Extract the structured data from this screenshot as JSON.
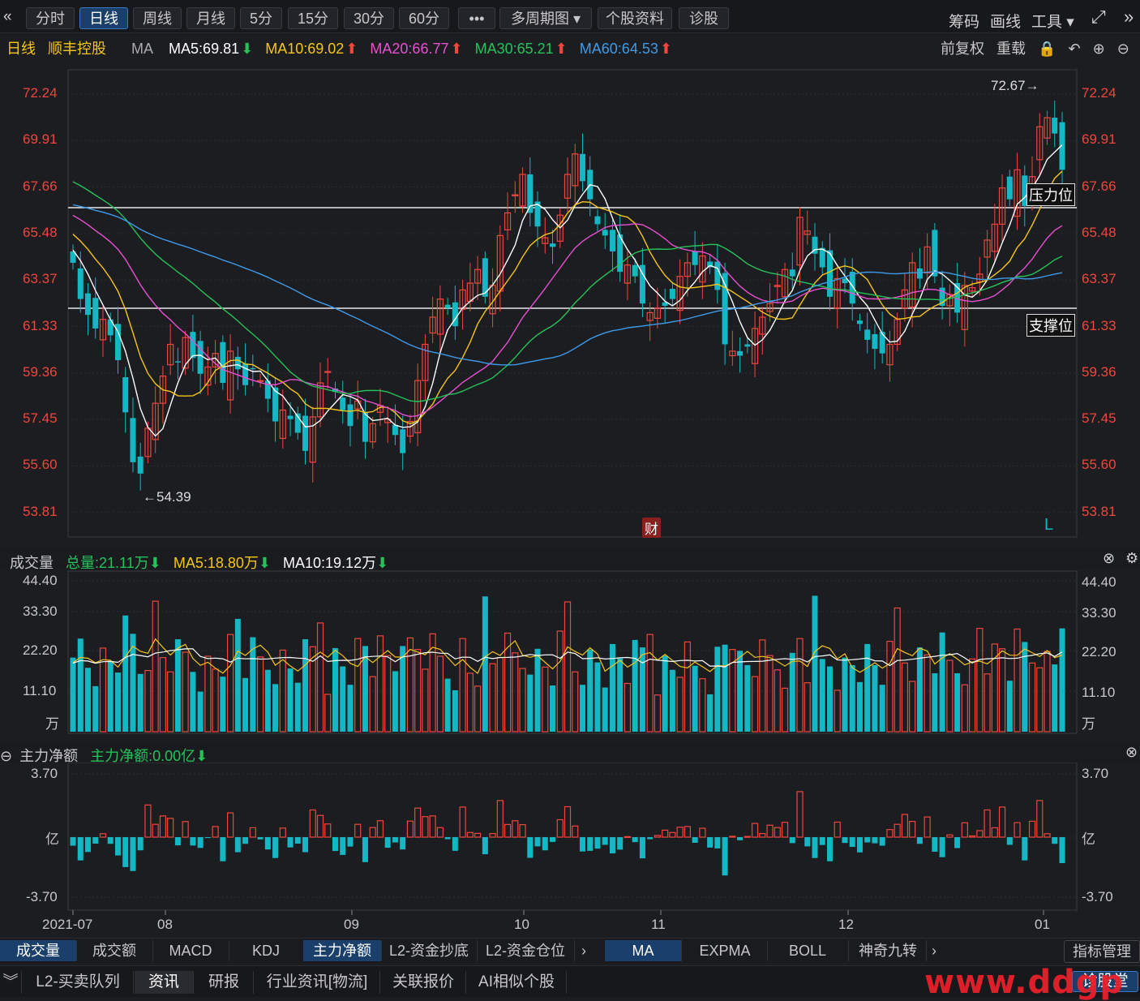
{
  "toolbar": {
    "back_icon": "«",
    "periods": [
      {
        "label": "分时",
        "active": false
      },
      {
        "label": "日线",
        "active": true
      },
      {
        "label": "周线",
        "active": false
      },
      {
        "label": "月线",
        "active": false
      },
      {
        "label": "5分",
        "active": false
      },
      {
        "label": "15分",
        "active": false
      },
      {
        "label": "30分",
        "active": false
      },
      {
        "label": "60分",
        "active": false
      }
    ],
    "more_label": "•••",
    "multi_period_label": "多周期图 ▾",
    "profile_label": "个股资料",
    "diagnose_label": "诊股",
    "right_items": [
      "筹码",
      "画线",
      "工具 ▾"
    ],
    "expand_icon": "⤢",
    "collapse_icon": "»"
  },
  "main_legend": {
    "period": "日线",
    "stock": "顺丰控股",
    "ma_label": "MA",
    "ma5": "MA5:69.81",
    "ma10": "MA10:69.02",
    "ma20": "MA20:66.77",
    "ma30": "MA30:65.21",
    "ma60": "MA60:64.53",
    "right_items": [
      "前复权",
      "重载"
    ],
    "colors": {
      "ma5": "#ffffff",
      "ma10": "#f5c518",
      "ma20": "#e84fd1",
      "ma30": "#25c25a",
      "ma60": "#3d9be9"
    }
  },
  "price_axis": [
    "72.24",
    "69.91",
    "67.66",
    "65.48",
    "63.37",
    "61.33",
    "59.36",
    "57.45",
    "55.60",
    "53.81"
  ],
  "annotations": {
    "high": "72.67→",
    "low": "←54.39",
    "resistance": "压力位",
    "support": "支撑位",
    "finance_badge": "财",
    "l_marker": "L"
  },
  "volume_panel": {
    "title": "成交量",
    "total": "总量:21.11万",
    "ma5": "MA5:18.80万",
    "ma10": "MA10:19.12万",
    "axis": [
      "44.40",
      "33.30",
      "22.20",
      "11.10"
    ],
    "unit": "万"
  },
  "flow_panel": {
    "title": "主力净额",
    "value": "主力净额:0.00亿",
    "axis_top": "3.70",
    "axis_mid": "亿",
    "axis_bottom": "-3.70"
  },
  "x_axis": [
    "2021-07",
    "08",
    "09",
    "10",
    "11",
    "12",
    "01"
  ],
  "indicator_tabs": [
    "成交量",
    "成交额",
    "MACD",
    "KDJ",
    "主力净额",
    "L2-资金抄底",
    "L2-资金仓位"
  ],
  "overlay_tabs": [
    "MA",
    "EXPMA",
    "BOLL",
    "神奇九转"
  ],
  "indicator_manage": "指标管理",
  "bottom_tabs": [
    "L2-买卖队列",
    "资讯",
    "研报",
    "行业资讯[物流]",
    "关联报价",
    "AI相似个股"
  ],
  "diagnose_hall": "诊股堂",
  "watermark": "www.ddgp",
  "colors": {
    "up": "#f0463c",
    "down": "#14b8c4",
    "bg": "#1c1d21"
  }
}
